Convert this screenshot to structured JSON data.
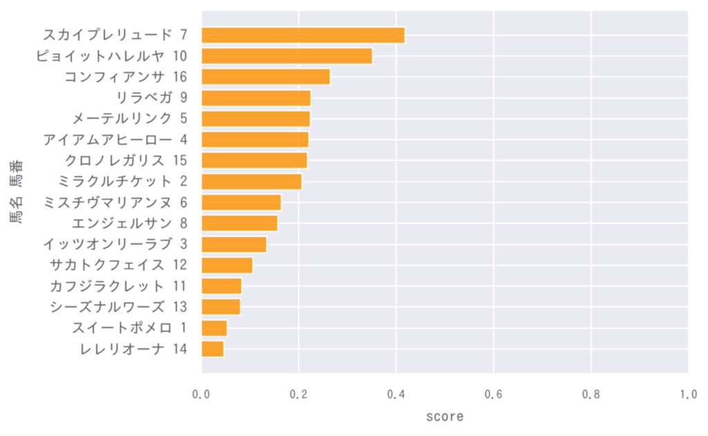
{
  "chart_data": {
    "type": "bar",
    "orientation": "horizontal",
    "title": "",
    "xlabel": "score",
    "ylabel": "馬名 馬番",
    "categories": [
      "スカイプレリュード 7",
      "ピョイットハレルヤ 10",
      "コンフィアンサ 16",
      "リラベガ 9",
      "メーテルリンク 5",
      "アイアムアヒーロー 4",
      "クロノレガリス 15",
      "ミラクルチケット 2",
      "ミスチヴマリアンヌ 6",
      "エンジェルサン 8",
      "イッツオンリーラブ 3",
      "サカトクフェイス 12",
      "カフジラクレット 11",
      "シーズナルワーズ 13",
      "スイートポメロ 1",
      "レレリオーナ 14"
    ],
    "values": [
      0.4185,
      0.3525,
      0.266,
      0.2265,
      0.2255,
      0.2215,
      0.2195,
      0.2085,
      0.1655,
      0.158,
      0.135,
      0.1065,
      0.0845,
      0.0815,
      0.0545,
      0.0475
    ],
    "xticks": [
      "0.0",
      "0.2",
      "0.4",
      "0.6",
      "0.8",
      "1.0"
    ],
    "xtick_values": [
      0.0,
      0.2,
      0.4,
      0.6,
      0.8,
      1.0
    ],
    "xlim": [
      0.0,
      1.0
    ],
    "grid": true,
    "legend_position": "none",
    "colors": {
      "bar_fill": "#fc970e",
      "bar_fill_alpha": 0.857,
      "bar_edge": "#ffffff",
      "plot_background": "#eaeaf2",
      "gridline": "#ffffff",
      "figure_background": "#ffffff",
      "text": "#5c5c62"
    }
  }
}
